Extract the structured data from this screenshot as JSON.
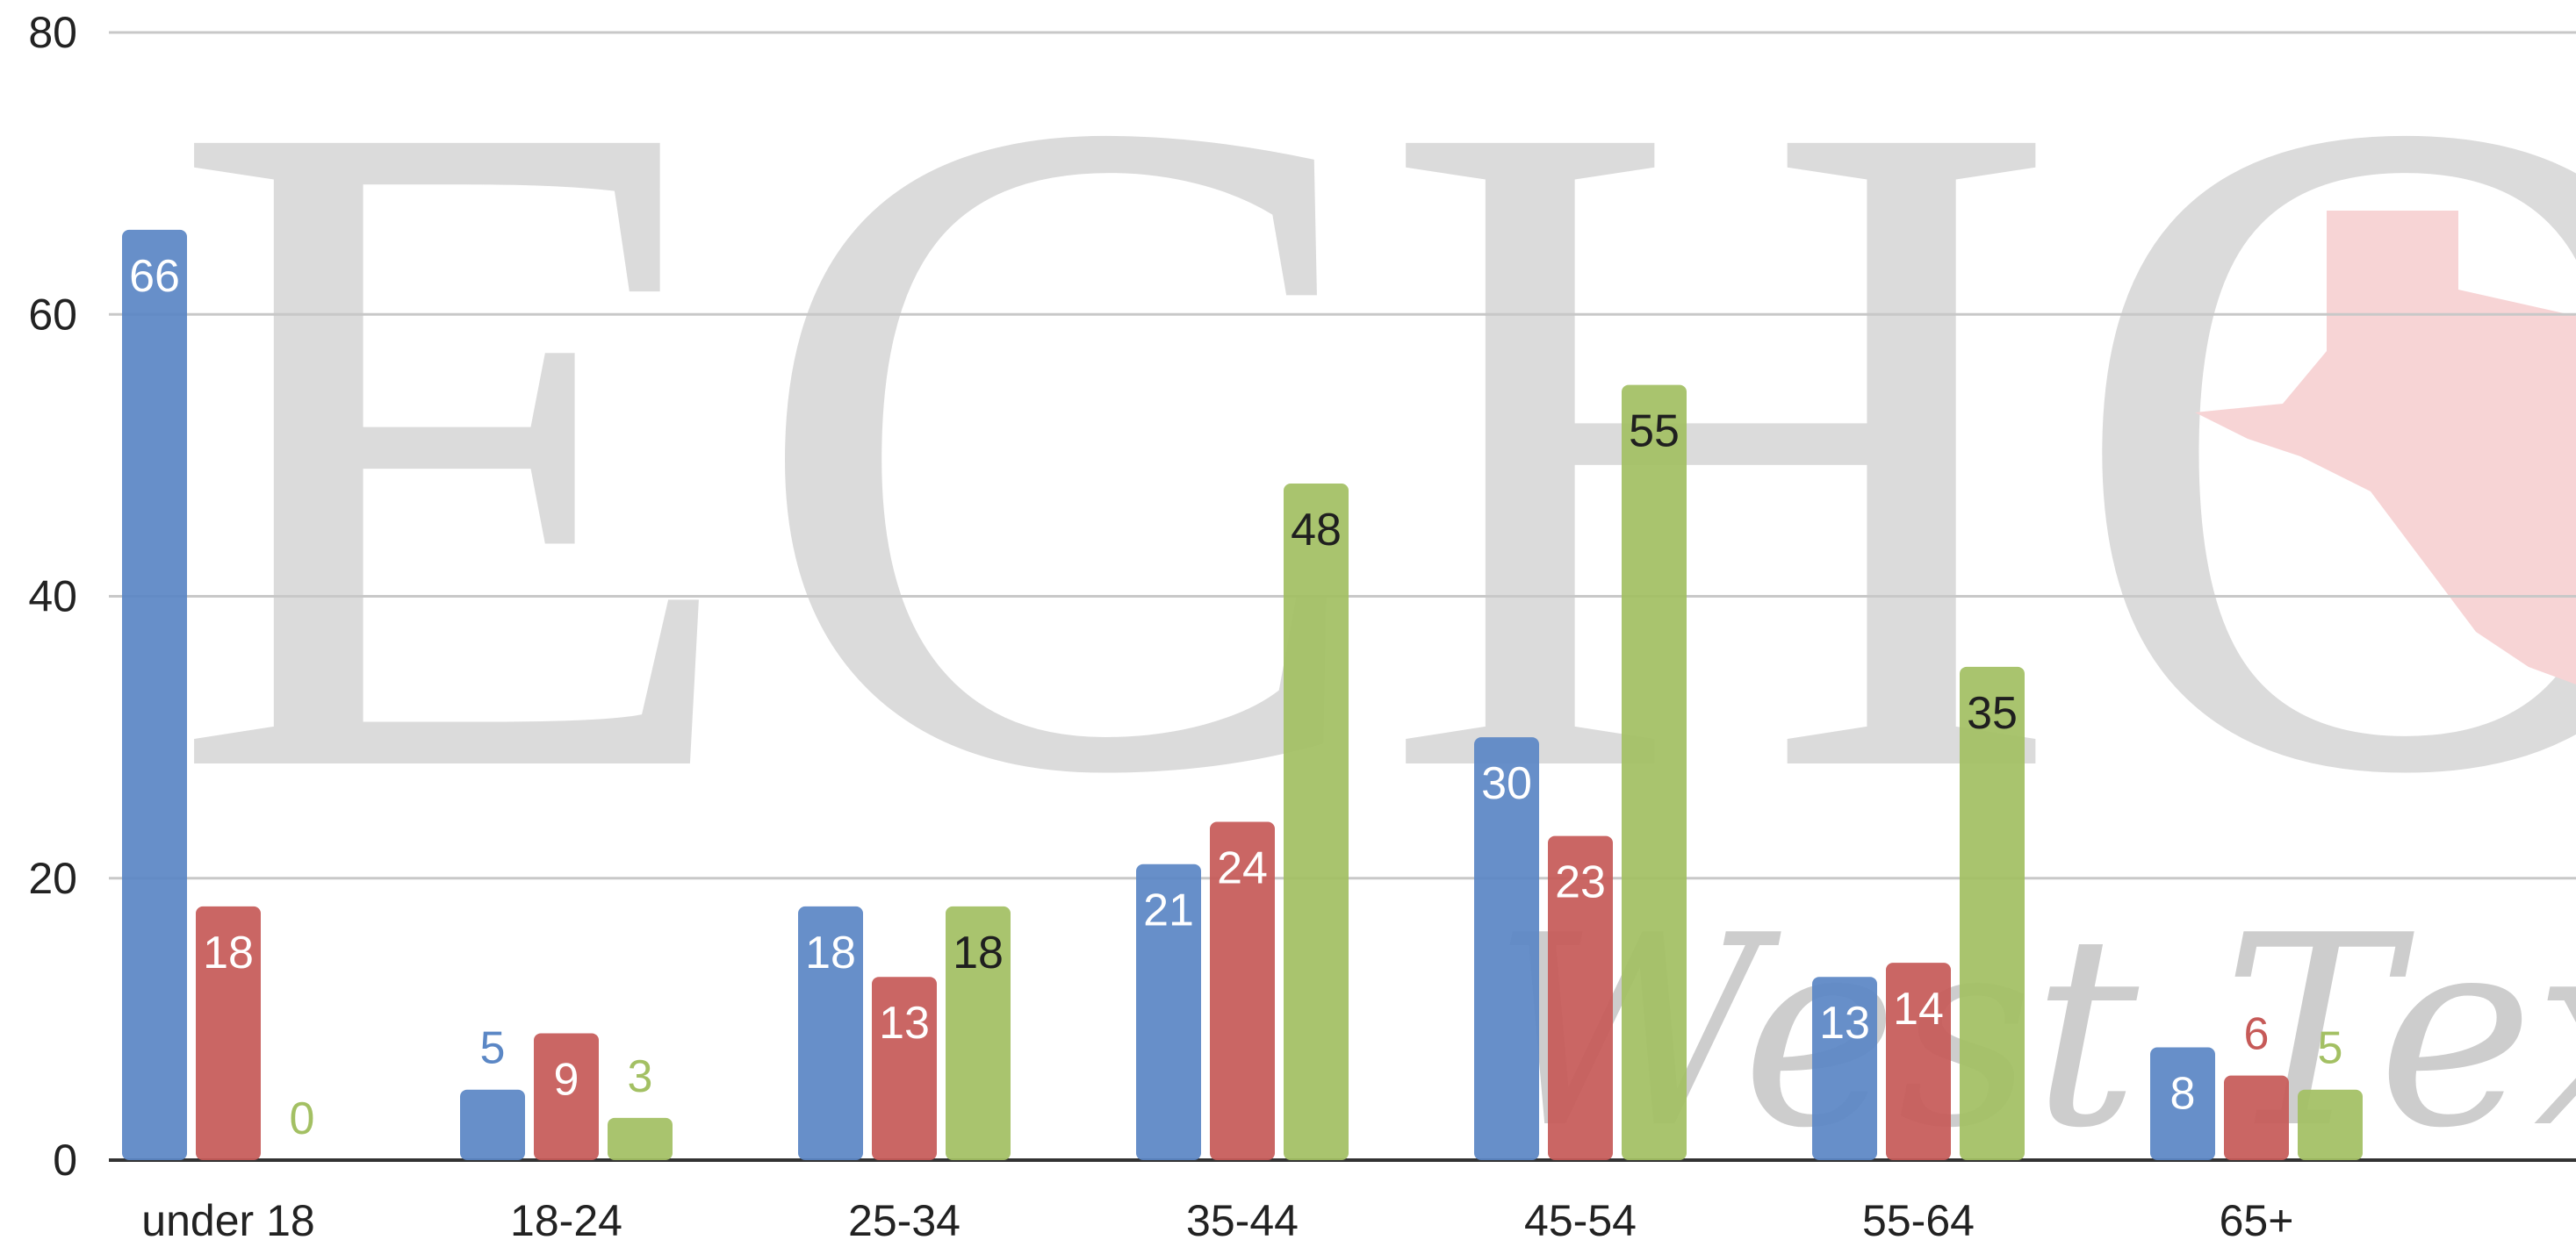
{
  "chart_data": {
    "type": "bar",
    "categories": [
      "under 18",
      "18-24",
      "25-34",
      "35-44",
      "45-54",
      "55-64",
      "65+"
    ],
    "series": [
      {
        "values": [
          66,
          5,
          18,
          21,
          30,
          13,
          8
        ],
        "color": "#5b87c5"
      },
      {
        "values": [
          18,
          9,
          13,
          24,
          23,
          14,
          6
        ],
        "color": "#c65a58"
      },
      {
        "values": [
          0,
          3,
          18,
          48,
          55,
          35,
          5
        ],
        "color": "#a3c063"
      }
    ],
    "ylim": [
      0,
      80
    ],
    "yticks": [
      0,
      20,
      40,
      60,
      80
    ],
    "grid": true,
    "title": "",
    "xlabel": "",
    "ylabel": ""
  },
  "watermark": {
    "text": "ECHO",
    "script_text": "West Texas",
    "color": "#cfcfcf",
    "state_color": "#f5c6c8"
  }
}
